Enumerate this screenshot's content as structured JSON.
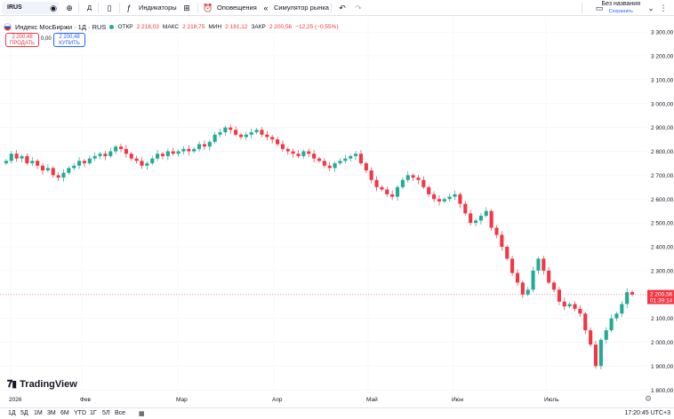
{
  "toolbar": {
    "symbol": "IRUS",
    "interval": "Д",
    "indicators": "Индикаторы",
    "alerts": "Оповещения",
    "replay": "Симулятор рынка",
    "layout_name": "Без названия",
    "layout_status": "Сохранить"
  },
  "legend": {
    "title": "Индекс МосБиржи · 1Д · RUS",
    "open_label": "ОТКР",
    "open": "2 218,03",
    "high_label": "МАКС",
    "high": "2 218,75",
    "low_label": "МИН",
    "low": "2 181,12",
    "close_label": "ЗАКР",
    "close": "2 200,56",
    "change": "−12,25 (−0,55%)"
  },
  "trade": {
    "sell_price": "2 200,48",
    "sell_label": "ПРОДАТЬ",
    "spread": "0,00",
    "buy_price": "2 200,48",
    "buy_label": "КУПИТЬ"
  },
  "price_axis": {
    "ticks": [
      "3 300,00",
      "3 200,00",
      "3 100,00",
      "3 000,00",
      "2 900,00",
      "2 800,00",
      "2 700,00",
      "2 600,00",
      "2 500,00",
      "2 400,00",
      "2 300,00",
      "2 100,00",
      "2 000,00",
      "1 900,00",
      "1 800,00"
    ],
    "last_price": "2 200,56",
    "countdown": "01:39:14"
  },
  "time_axis": {
    "labels": [
      "2026",
      "Фев",
      "Мар",
      "Апр",
      "Май",
      "Июн",
      "Июль"
    ]
  },
  "colors": {
    "up": "#22ab94",
    "down": "#f23645",
    "accent": "#2962ff"
  },
  "chart_data": {
    "type": "candlestick",
    "ylim": [
      1760,
      3360
    ],
    "closes": [
      2760,
      2790,
      2770,
      2780,
      2750,
      2760,
      2740,
      2720,
      2730,
      2700,
      2690,
      2710,
      2730,
      2740,
      2760,
      2750,
      2770,
      2780,
      2790,
      2780,
      2800,
      2820,
      2810,
      2790,
      2770,
      2760,
      2740,
      2750,
      2770,
      2790,
      2780,
      2800,
      2790,
      2800,
      2810,
      2800,
      2810,
      2830,
      2820,
      2840,
      2870,
      2880,
      2900,
      2890,
      2870,
      2860,
      2870,
      2880,
      2890,
      2870,
      2860,
      2850,
      2830,
      2810,
      2800,
      2790,
      2780,
      2800,
      2790,
      2770,
      2760,
      2740,
      2730,
      2750,
      2760,
      2770,
      2780,
      2790,
      2750,
      2720,
      2680,
      2650,
      2640,
      2620,
      2610,
      2650,
      2680,
      2700,
      2690,
      2680,
      2650,
      2620,
      2600,
      2590,
      2600,
      2610,
      2620,
      2580,
      2540,
      2500,
      2510,
      2530,
      2550,
      2480,
      2450,
      2400,
      2350,
      2290,
      2250,
      2200,
      2220,
      2300,
      2350,
      2300,
      2250,
      2220,
      2170,
      2150,
      2160,
      2140,
      2120,
      2050,
      1990,
      1900,
      2010,
      2050,
      2100,
      2120,
      2160,
      2210,
      2200
    ]
  },
  "footer": {
    "brand": "TradingView",
    "ranges": [
      "1Д",
      "5Д",
      "1М",
      "3М",
      "6М",
      "YTD",
      "1Г",
      "5Л",
      "Все"
    ],
    "clock": "17:20:45 UTC+3"
  }
}
